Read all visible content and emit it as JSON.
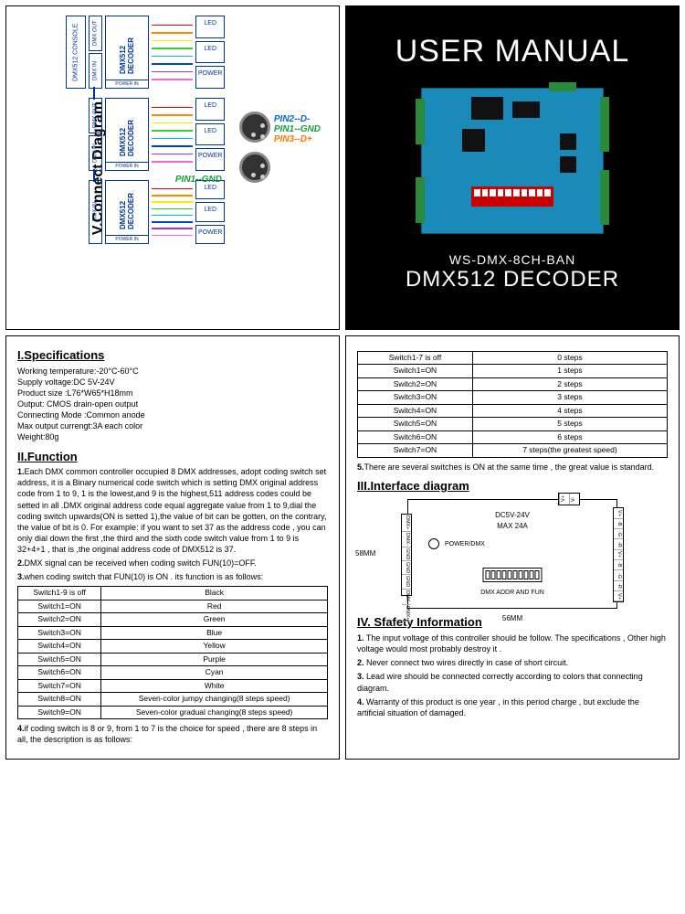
{
  "top_left": {
    "title": "V.Connect Diagram",
    "console": "DMX512 CONSOLE",
    "dmx_out": "DMX OUT",
    "dmx_in": "DMX IN",
    "decoder": "DMX512\nDECODER",
    "power_in": "POWER IN",
    "led": "LED",
    "power": "POWER",
    "wire_colors": [
      "#e30000",
      "#ff8800",
      "#ffee00",
      "#33cc33",
      "#00bbee",
      "#0044cc",
      "#aa33cc",
      "#ff66cc"
    ],
    "pin_labels": {
      "p1": "PIN1--GND",
      "p2": "PIN2--D-",
      "p3": "PIN3--D+",
      "p1_color": "#1a9e3a",
      "p2_color": "#0066cc",
      "p3_color": "#ff7700"
    }
  },
  "cover": {
    "title": "USER MANUAL",
    "model": "WS-DMX-8CH-BAN",
    "product": "DMX512 DECODER"
  },
  "specs": {
    "heading": "I.Specifications",
    "lines": [
      "Working temperature:-20°C-60°C",
      "Supply voltage:DC 5V-24V",
      "Product size :L76*W65*H18mm",
      "Output: CMOS drain-open output",
      "Connecting Mode :Common anode",
      "Max output currengt:3A  each color",
      "Weight:80g"
    ]
  },
  "function": {
    "heading": "II.Function",
    "item1": "Each DMX common controller occupied 8 DMX addresses, adopt coding switch set address, it is a Binary numerical code switch which is setting DMX original address code from 1 to 9, 1 is the lowest,and 9 is the highest,511 address codes  could be setted  in all .DMX original address code equal aggregate value from 1 to 9,dial the coding switch upwards(ON is setted 1),the value of bit can be  gotten, on the contrary, the value of bit is 0. For example: if you want to set 37 as the address code , you can only dial down the first ,the third and the  sixth code switch value from 1 to 9 is 32+4+1 , that is ,the original address  code of DMX512 is 37.",
    "item2": "DMX signal can be received when coding switch FUN(10)=OFF.",
    "item3": "when coding switch that FUN(10) is ON . its function is as follows:",
    "item4": "if coding switch is 8 or 9,  from 1 to 7 is the choice for speed , there are 8 steps in all, the description is as follows:"
  },
  "color_table": {
    "rows": [
      [
        "Switch1-9 is off",
        "Black"
      ],
      [
        "Switch1=ON",
        "Red"
      ],
      [
        "Switch2=ON",
        "Green"
      ],
      [
        "Switch3=ON",
        "Blue"
      ],
      [
        "Switch4=ON",
        "Yellow"
      ],
      [
        "Switch5=ON",
        "Purple"
      ],
      [
        "Switch6=ON",
        "Cyan"
      ],
      [
        "Switch7=ON",
        "White"
      ],
      [
        "Switch8=ON",
        "Seven-color jumpy changing(8 steps speed)"
      ],
      [
        "Switch9=ON",
        "Seven-color gradual changing(8 steps speed)"
      ]
    ]
  },
  "speed_table": {
    "rows": [
      [
        "Switch1-7 is off",
        "0 steps"
      ],
      [
        "Switch1=ON",
        "1 steps"
      ],
      [
        "Switch2=ON",
        "2 steps"
      ],
      [
        "Switch3=ON",
        "3 steps"
      ],
      [
        "Switch4=ON",
        "4 steps"
      ],
      [
        "Switch5=ON",
        "5 steps"
      ],
      [
        "Switch6=ON",
        "6 steps"
      ],
      [
        "Switch7=ON",
        "7 steps(the greatest speed)"
      ]
    ]
  },
  "item5": "There are several switches is ON at the same time , the great value is standard.",
  "interface": {
    "heading": "III.Interface diagram",
    "volt": "DC5V-24V",
    "amp": "MAX 24A",
    "pwr": "POWER/DMX",
    "addr": "DMX ADDR AND FUN",
    "dim_h": "58MM",
    "dim_w": "56MM",
    "left_pins": [
      "DMX+",
      "DMX-",
      "GND",
      "GND",
      "GND",
      "DMX-",
      "DMX+"
    ],
    "top_pins": [
      "V+",
      "V-"
    ],
    "right_pins": [
      "V+",
      "-B",
      "-G",
      "-R",
      "V+",
      "-B",
      "-G",
      "-R",
      "V+"
    ]
  },
  "safety": {
    "heading": "IV. Sfafety Information",
    "items": [
      "The input voltage of this controller should be follow. The specifications , Other high voltage would most probably destroy it .",
      "Never connect two wires directly in case of short circuit.",
      "Lead wire should be connected correctly according to colors that connecting diagram.",
      "Warranty of this product is one year , in this period charge , but exclude the artificial situation of damaged."
    ]
  }
}
